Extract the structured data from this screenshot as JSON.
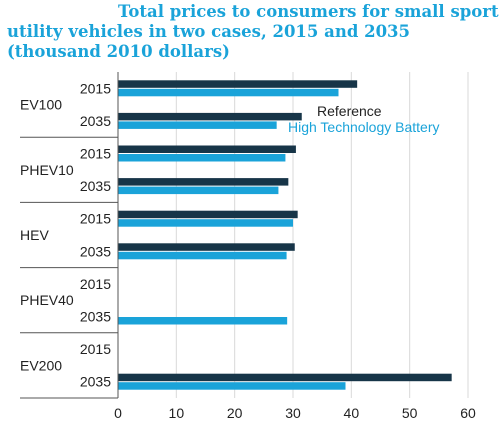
{
  "chart_data": {
    "type": "bar",
    "orientation": "horizontal",
    "title_lines": [
      "Total prices to consumers for small sport",
      "utility vehicles in two cases, 2015 and 2035",
      "(thousand 2010 dollars)"
    ],
    "groups": [
      {
        "name": "EV100",
        "years": [
          {
            "year": "2015",
            "reference": 41,
            "high_tech": 37.8
          },
          {
            "year": "2035",
            "reference": 31.5,
            "high_tech": 27.2
          }
        ]
      },
      {
        "name": "PHEV10",
        "years": [
          {
            "year": "2015",
            "reference": 30.5,
            "high_tech": 28.7
          },
          {
            "year": "2035",
            "reference": 29.2,
            "high_tech": 27.5
          }
        ]
      },
      {
        "name": "HEV",
        "years": [
          {
            "year": "2015",
            "reference": 30.8,
            "high_tech": 30
          },
          {
            "year": "2035",
            "reference": 30.3,
            "high_tech": 28.9
          }
        ]
      },
      {
        "name": "PHEV40",
        "years": [
          {
            "year": "2015",
            "reference": null,
            "high_tech": null
          },
          {
            "year": "2035",
            "reference": null,
            "high_tech": 29
          }
        ]
      },
      {
        "name": "EV200",
        "years": [
          {
            "year": "2015",
            "reference": null,
            "high_tech": null
          },
          {
            "year": "2035",
            "reference": 57.2,
            "high_tech": 39
          }
        ]
      }
    ],
    "series": [
      {
        "key": "reference",
        "name": "Reference",
        "color": "#173548"
      },
      {
        "key": "high_tech",
        "name": "High Technology Battery",
        "color": "#1aa3d9"
      }
    ],
    "xlim": [
      0,
      60
    ],
    "xticks": [
      0,
      10,
      20,
      30,
      40,
      50,
      60
    ],
    "legend_position": "upper-right",
    "grid": "vertical"
  }
}
